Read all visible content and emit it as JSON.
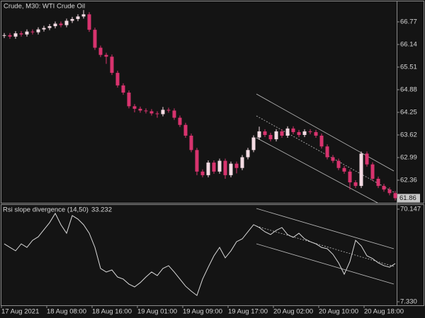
{
  "chart_data": [
    {
      "type": "candlestick",
      "title": "Crude, M30:  WTI Crude Oil",
      "categories": [
        "17 Aug 2021",
        null,
        null,
        null,
        null,
        null,
        null,
        null,
        "18 Aug 08:00",
        null,
        null,
        null,
        null,
        null,
        null,
        null,
        "18 Aug 16:00",
        null,
        null,
        null,
        null,
        null,
        null,
        null,
        "19 Aug 01:00",
        null,
        null,
        null,
        null,
        null,
        null,
        null,
        "19 Aug 09:00",
        null,
        null,
        null,
        null,
        null,
        null,
        null,
        "19 Aug 17:00",
        null,
        null,
        null,
        null,
        null,
        null,
        null,
        "20 Aug 02:00",
        null,
        null,
        null,
        null,
        null,
        null,
        null,
        "20 Aug 10:00",
        null,
        null,
        null,
        null,
        null,
        null,
        null,
        "20 Aug 18:00",
        null,
        null,
        null,
        null,
        null
      ],
      "open": [
        66.38,
        66.4,
        66.36,
        66.45,
        66.42,
        66.5,
        66.48,
        66.56,
        66.6,
        66.65,
        66.72,
        66.68,
        66.8,
        66.85,
        66.92,
        66.98,
        66.55,
        66.05,
        65.85,
        65.8,
        65.35,
        65.0,
        64.8,
        64.42,
        64.35,
        64.3,
        64.28,
        64.22,
        64.2,
        64.32,
        64.3,
        64.1,
        63.9,
        63.6,
        63.2,
        62.6,
        62.5,
        62.85,
        62.6,
        62.9,
        62.5,
        62.82,
        62.7,
        63.0,
        63.2,
        63.55,
        63.72,
        63.62,
        63.5,
        63.72,
        63.6,
        63.8,
        63.7,
        63.62,
        63.72,
        63.7,
        63.6,
        63.3,
        63.0,
        62.9,
        62.7,
        62.6,
        62.3,
        62.2,
        63.1,
        62.8,
        62.4,
        62.2,
        62.1,
        62.0
      ],
      "high": [
        66.46,
        66.46,
        66.51,
        66.51,
        66.56,
        66.56,
        66.62,
        66.66,
        66.71,
        66.78,
        66.78,
        66.86,
        66.91,
        66.98,
        67.1,
        67.04,
        66.61,
        66.11,
        65.91,
        65.86,
        65.41,
        65.06,
        64.86,
        64.48,
        64.41,
        64.36,
        64.34,
        64.28,
        64.4,
        64.38,
        64.36,
        64.16,
        63.96,
        63.66,
        63.26,
        62.66,
        62.91,
        62.91,
        62.96,
        62.96,
        62.88,
        62.88,
        63.06,
        63.26,
        63.61,
        63.85,
        63.78,
        63.68,
        63.78,
        63.78,
        63.86,
        63.86,
        63.76,
        63.78,
        63.78,
        63.76,
        63.66,
        63.36,
        63.06,
        62.96,
        62.76,
        62.66,
        62.36,
        63.16,
        63.16,
        62.86,
        62.46,
        62.26,
        62.16,
        62.06
      ],
      "low": [
        66.32,
        66.3,
        66.3,
        66.36,
        66.36,
        66.42,
        66.42,
        66.5,
        66.54,
        66.59,
        66.62,
        66.62,
        66.74,
        66.79,
        66.86,
        66.49,
        65.99,
        65.79,
        65.6,
        65.29,
        64.94,
        64.74,
        64.36,
        64.25,
        64.24,
        64.22,
        64.16,
        64.1,
        64.14,
        64.24,
        64.04,
        63.84,
        63.54,
        63.14,
        62.5,
        62.44,
        62.44,
        62.54,
        62.54,
        62.4,
        62.44,
        62.55,
        62.64,
        62.94,
        63.14,
        63.49,
        63.56,
        63.44,
        63.44,
        63.54,
        63.54,
        63.64,
        63.56,
        63.56,
        63.64,
        63.54,
        63.24,
        62.94,
        62.84,
        62.64,
        62.54,
        62.1,
        62.14,
        62.14,
        62.74,
        62.34,
        62.14,
        62.04,
        61.94,
        61.8
      ],
      "close": [
        66.4,
        66.36,
        66.45,
        66.42,
        66.5,
        66.48,
        66.56,
        66.6,
        66.65,
        66.72,
        66.68,
        66.8,
        66.85,
        66.92,
        66.98,
        66.55,
        66.05,
        65.85,
        65.8,
        65.35,
        65.0,
        64.8,
        64.42,
        64.35,
        64.3,
        64.28,
        64.22,
        64.2,
        64.32,
        64.3,
        64.1,
        63.9,
        63.6,
        63.2,
        62.6,
        62.5,
        62.85,
        62.6,
        62.9,
        62.5,
        62.82,
        62.7,
        63.0,
        63.2,
        63.55,
        63.72,
        63.62,
        63.5,
        63.72,
        63.6,
        63.8,
        63.7,
        63.62,
        63.72,
        63.7,
        63.6,
        63.3,
        63.0,
        62.9,
        62.7,
        62.6,
        62.3,
        62.2,
        63.1,
        62.8,
        62.4,
        62.2,
        62.1,
        62.0,
        61.86
      ],
      "up_color": "#f4dbe3",
      "down_color": "#d8336e",
      "ylim": [
        61.73,
        67.34
      ],
      "yticks": [
        66.77,
        66.14,
        65.51,
        64.88,
        64.25,
        63.62,
        62.99,
        62.36
      ]
    },
    {
      "type": "line",
      "title": "Rsi slope divergence (14,50)",
      "values": [
        46.6,
        44.2,
        41.9,
        46.6,
        44.2,
        49.0,
        51.4,
        56.2,
        61.0,
        67.3,
        59.6,
        53.8,
        65.8,
        63.4,
        59.6,
        53.8,
        44.2,
        29.9,
        27.5,
        28.9,
        24.1,
        22.7,
        19.3,
        17.4,
        20.3,
        24.1,
        27.5,
        25.1,
        29.9,
        31.8,
        27.5,
        22.7,
        17.9,
        14.5,
        11.6,
        22.7,
        30.8,
        38.5,
        44.2,
        37.1,
        41.9,
        48.1,
        50.0,
        54.8,
        59.6,
        57.7,
        54.8,
        52.9,
        55.8,
        57.7,
        52.9,
        51.0,
        53.8,
        50.0,
        48.1,
        46.6,
        44.2,
        43.3,
        39.5,
        33.7,
        26.0,
        34.6,
        49.0,
        45.2,
        38.5,
        36.6,
        33.7,
        31.8,
        30.8,
        33.232
      ],
      "color": "#d9d9d9",
      "ylim": [
        4.93,
        73.02
      ],
      "yticks": [
        70.147,
        {
          "value": 7.33,
          "label": "7.330"
        }
      ]
    }
  ]
}
